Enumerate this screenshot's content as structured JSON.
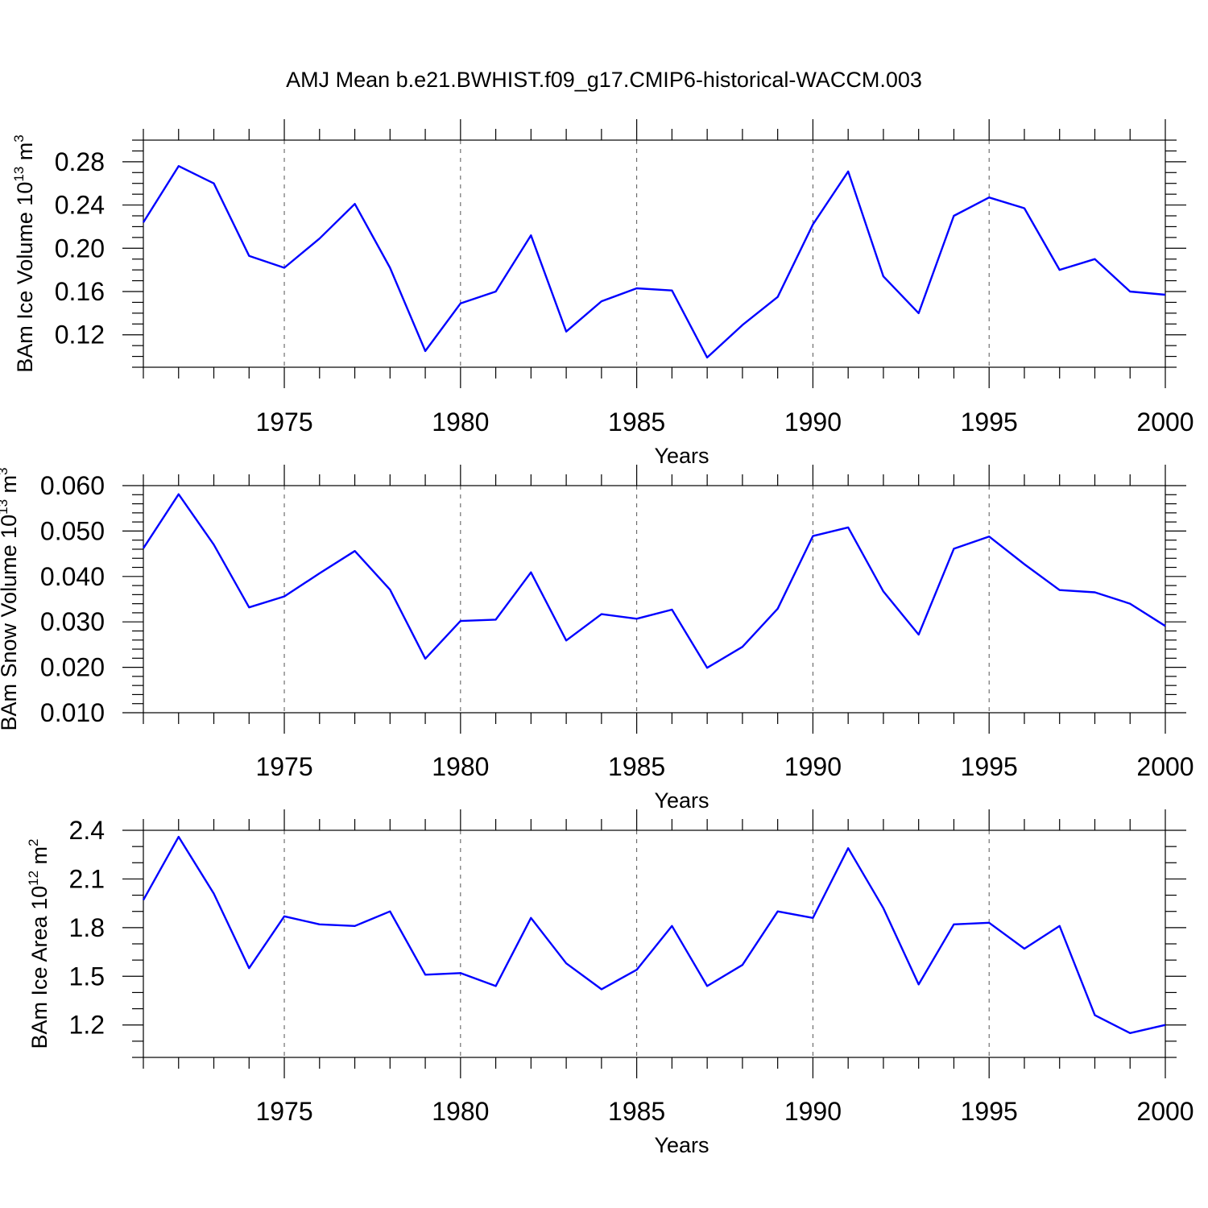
{
  "chart_data": [
    {
      "type": "line",
      "title": "AMJ Mean b.e21.BWHIST.f09_g17.CMIP6-historical-WACCM.003",
      "xlabel": "Years",
      "ylabel_main": "BAm Ice Volume 10",
      "ylabel_exp": "13",
      "ylabel_unit": " m",
      "ylabel_unit_exp": "3",
      "xlim": [
        1971,
        2000
      ],
      "ylim": [
        0.09,
        0.3
      ],
      "xticks": [
        1975,
        1980,
        1985,
        1990,
        1995,
        2000
      ],
      "yticks": [
        0.12,
        0.16,
        0.2,
        0.24,
        0.28
      ],
      "ytick_labels": [
        "0.12",
        "0.16",
        "0.20",
        "0.24",
        "0.28"
      ],
      "x_minor_step": 1,
      "y_minor_step": 0.01,
      "grid_x": true,
      "color": "#0000ff",
      "x": [
        1971,
        1972,
        1973,
        1974,
        1975,
        1976,
        1977,
        1978,
        1979,
        1980,
        1981,
        1982,
        1983,
        1984,
        1985,
        1986,
        1987,
        1988,
        1989,
        1990,
        1991,
        1992,
        1993,
        1994,
        1995,
        1996,
        1997,
        1998,
        1999,
        2000
      ],
      "values": [
        0.224,
        0.276,
        0.26,
        0.193,
        0.182,
        0.209,
        0.241,
        0.182,
        0.105,
        0.149,
        0.16,
        0.212,
        0.123,
        0.151,
        0.163,
        0.161,
        0.099,
        0.129,
        0.155,
        0.222,
        0.271,
        0.174,
        0.14,
        0.23,
        0.247,
        0.237,
        0.18,
        0.19,
        0.16,
        0.157
      ]
    },
    {
      "type": "line",
      "xlabel": "Years",
      "ylabel_main": "BAm Snow Volume 10",
      "ylabel_exp": "13",
      "ylabel_unit": " m",
      "ylabel_unit_exp": "3",
      "xlim": [
        1971,
        2000
      ],
      "ylim": [
        0.01,
        0.06
      ],
      "xticks": [
        1975,
        1980,
        1985,
        1990,
        1995,
        2000
      ],
      "yticks": [
        0.01,
        0.02,
        0.03,
        0.04,
        0.05,
        0.06
      ],
      "ytick_labels": [
        "0.010",
        "0.020",
        "0.030",
        "0.040",
        "0.050",
        "0.060"
      ],
      "x_minor_step": 1,
      "y_minor_step": 0.002,
      "grid_x": true,
      "color": "#0000ff",
      "x": [
        1971,
        1972,
        1973,
        1974,
        1975,
        1976,
        1977,
        1978,
        1979,
        1980,
        1981,
        1982,
        1983,
        1984,
        1985,
        1986,
        1987,
        1988,
        1989,
        1990,
        1991,
        1992,
        1993,
        1994,
        1995,
        1996,
        1997,
        1998,
        1999,
        2000
      ],
      "values": [
        0.0462,
        0.0581,
        0.047,
        0.0332,
        0.0356,
        0.0407,
        0.0456,
        0.0371,
        0.0219,
        0.0302,
        0.0305,
        0.0409,
        0.0259,
        0.0317,
        0.0307,
        0.0327,
        0.0199,
        0.0245,
        0.0329,
        0.0489,
        0.0508,
        0.0367,
        0.0272,
        0.0461,
        0.0488,
        0.0427,
        0.037,
        0.0365,
        0.034,
        0.0291
      ]
    },
    {
      "type": "line",
      "xlabel": "Years",
      "ylabel_main": "BAm Ice Area 10",
      "ylabel_exp": "12",
      "ylabel_unit": " m",
      "ylabel_unit_exp": "2",
      "xlim": [
        1971,
        2000
      ],
      "ylim": [
        1.0,
        2.4
      ],
      "xticks": [
        1975,
        1980,
        1985,
        1990,
        1995,
        2000
      ],
      "yticks": [
        1.2,
        1.5,
        1.8,
        2.1,
        2.4
      ],
      "ytick_labels": [
        "1.2",
        "1.5",
        "1.8",
        "2.1",
        "2.4"
      ],
      "x_minor_step": 1,
      "y_minor_step": 0.1,
      "grid_x": true,
      "color": "#0000ff",
      "x": [
        1971,
        1972,
        1973,
        1974,
        1975,
        1976,
        1977,
        1978,
        1979,
        1980,
        1981,
        1982,
        1983,
        1984,
        1985,
        1986,
        1987,
        1988,
        1989,
        1990,
        1991,
        1992,
        1993,
        1994,
        1995,
        1996,
        1997,
        1998,
        1999,
        2000
      ],
      "values": [
        1.97,
        2.36,
        2.01,
        1.55,
        1.87,
        1.82,
        1.81,
        1.9,
        1.51,
        1.52,
        1.44,
        1.86,
        1.58,
        1.42,
        1.54,
        1.81,
        1.44,
        1.57,
        1.9,
        1.86,
        2.29,
        1.92,
        1.45,
        1.82,
        1.83,
        1.67,
        1.81,
        1.26,
        1.15,
        1.2
      ]
    }
  ]
}
